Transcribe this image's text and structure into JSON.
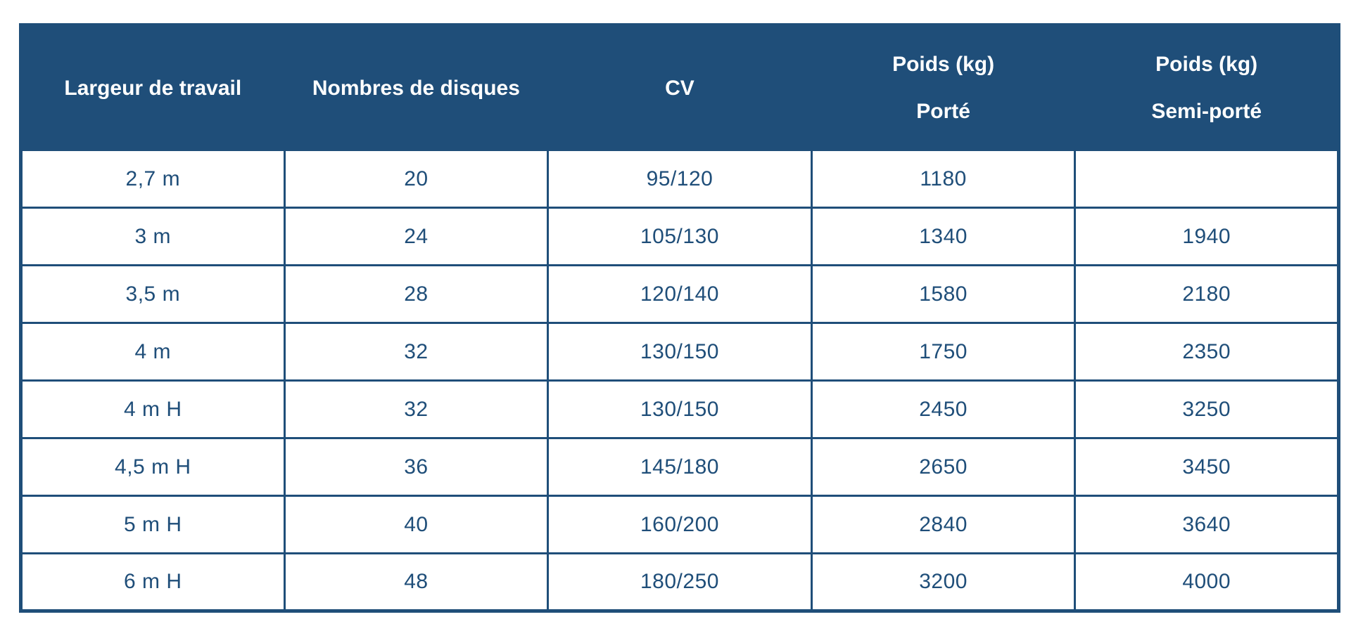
{
  "colors": {
    "header_bg": "#1f4e79",
    "border": "#1f4e79",
    "header_text": "#ffffff",
    "body_text": "#1f4e79",
    "page_bg": "#ffffff"
  },
  "chart_data": {
    "type": "table",
    "title": "",
    "columns": [
      {
        "label": "Largeur de travail",
        "sub": ""
      },
      {
        "label": "Nombres de disques",
        "sub": ""
      },
      {
        "label": "CV",
        "sub": ""
      },
      {
        "label": "Poids (kg)",
        "sub": "Porté"
      },
      {
        "label": "Poids (kg)",
        "sub": "Semi-porté"
      }
    ],
    "rows": [
      [
        "2,7 m",
        "20",
        "95/120",
        "1180",
        ""
      ],
      [
        "3 m",
        "24",
        "105/130",
        "1340",
        "1940"
      ],
      [
        "3,5 m",
        "28",
        "120/140",
        "1580",
        "2180"
      ],
      [
        "4 m",
        "32",
        "130/150",
        "1750",
        "2350"
      ],
      [
        "4 m H",
        "32",
        "130/150",
        "2450",
        "3250"
      ],
      [
        "4,5 m H",
        "36",
        "145/180",
        "2650",
        "3450"
      ],
      [
        "5 m H",
        "40",
        "160/200",
        "2840",
        "3640"
      ],
      [
        "6 m H",
        "48",
        "180/250",
        "3200",
        "4000"
      ]
    ]
  }
}
